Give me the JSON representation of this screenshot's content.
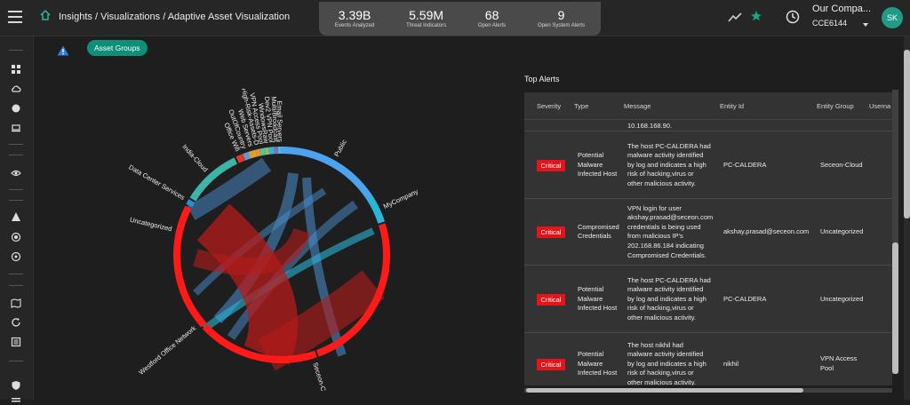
{
  "header": {
    "breadcrumb": "Insights / Visualizations / Adaptive Asset Visualization",
    "stats": [
      {
        "value": "3.39B",
        "label": "Events Analyzed"
      },
      {
        "value": "5.59M",
        "label": "Threat Indicators"
      },
      {
        "value": "68",
        "label": "Open Alerts"
      },
      {
        "value": "9",
        "label": "Open System Alerts"
      }
    ],
    "company": "Our Compa...",
    "company_id": "CCE6144",
    "avatar": "SK",
    "icons": {
      "menu": "hamburger-icon",
      "home": "home-icon",
      "trend": "trend-line-icon",
      "star": "star-icon",
      "clock": "clock-icon"
    },
    "accent": "#1f9b86"
  },
  "asset_groups_button": "Asset Groups",
  "chord": {
    "groups": [
      {
        "name": "Public",
        "color": "#4da3f0"
      },
      {
        "name": "MyCompany",
        "color": "#29b6d8"
      },
      {
        "name": "Seceon-Cloud",
        "color": "#ff1a1a"
      },
      {
        "name": "Westford Office Network",
        "color": "#ff1a1a"
      },
      {
        "name": "Uncategorized",
        "color": "#ff1a1a"
      },
      {
        "name": "Data Center Services",
        "color": "#2a8fd6"
      },
      {
        "name": "India-Cloud",
        "color": "#3cb4a8"
      },
      {
        "name": "Office Wifi",
        "color": "#e4342f"
      },
      {
        "name": "OutOfCountry",
        "color": "#5a9bd8"
      },
      {
        "name": "Web Servers",
        "color": "#d9a032"
      },
      {
        "name": "High-Risk-Assets-D",
        "color": "#f28f2a"
      },
      {
        "name": "VPN Access Pool",
        "color": "#5ec08c"
      },
      {
        "name": "WindowsRaw",
        "color": "#9ab86a"
      },
      {
        "name": "Dev2 VPN Pool",
        "color": "#3bb3c3"
      },
      {
        "name": "Multi/Broadcast",
        "color": "#7d6fd1"
      },
      {
        "name": "Email Servers",
        "color": "#4fc0d0"
      }
    ]
  },
  "alerts": {
    "title": "Top Alerts",
    "columns": [
      "Severity",
      "Type",
      "Message",
      "Entity Id",
      "Entity Group",
      "Userna"
    ],
    "partial_message": "10.168.168.90.",
    "rows": [
      {
        "severity": "Critical",
        "type": [
          "Potential",
          "Malware",
          "Infected Host"
        ],
        "message": [
          "The host PC-CALDERA had",
          "malware activity identified",
          "by log and indicates a high",
          "risk of hacking,virus or",
          "other malicious activity."
        ],
        "entity_id": "PC-CALDERA",
        "entity_group": [
          "Seceon-Cloud"
        ]
      },
      {
        "severity": "Critical",
        "type": [
          "Compromised",
          "Credentials"
        ],
        "message": [
          "VPN login for user",
          "akshay.prasad@seceon.com",
          "credentials is being used",
          "from malicious IP's",
          "202.168.86.184 indicating",
          "Compromised Credentials."
        ],
        "entity_id": "akshay.prasad@seceon.com",
        "entity_group": [
          "Uncategorized"
        ]
      },
      {
        "severity": "Critical",
        "type": [
          "Potential",
          "Malware",
          "Infected Host"
        ],
        "message": [
          "The host PC-CALDERA had",
          "malware activity identified",
          "by log and indicates a high",
          "risk of hacking,virus or",
          "other malicious activity."
        ],
        "entity_id": "PC-CALDERA",
        "entity_group": [
          "Uncategorized"
        ]
      },
      {
        "severity": "Critical",
        "type": [
          "Potential",
          "Malware",
          "Infected Host"
        ],
        "message": [
          "The host nikhil had",
          "malware activity identified",
          "by log and indicates a high",
          "risk of hacking,virus or",
          "other malicious activity."
        ],
        "entity_id": "nikhil",
        "entity_group": [
          "VPN Access",
          "Pool"
        ]
      }
    ],
    "severity_color": "#e5131a"
  }
}
